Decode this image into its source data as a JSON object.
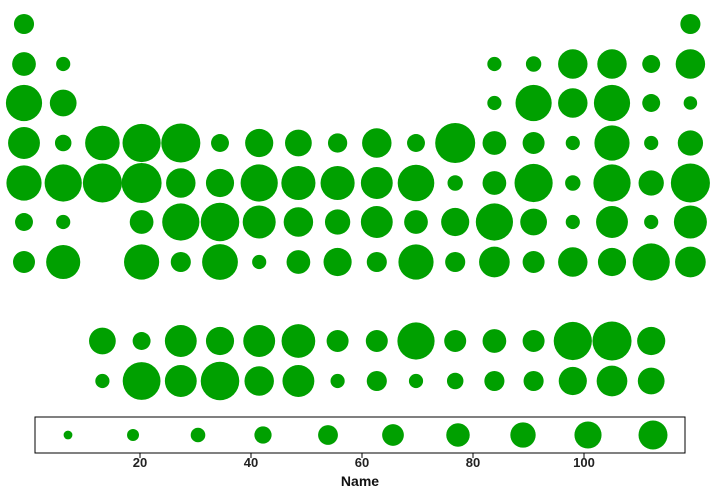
{
  "chart_data": {
    "type": "scatter",
    "subtype": "periodic-table bubble chart",
    "xlabel": "Name",
    "x_ticks": [
      20,
      40,
      60,
      80,
      100
    ],
    "xlim": [
      0,
      118
    ],
    "grid": false,
    "legend": "bottom, boxed size key",
    "colors": {
      "marker": "#00a000",
      "axis": "#000000",
      "text": "#111111"
    },
    "rows": [
      {
        "row": 1,
        "cells": [
          [
            1,
            0.2
          ],
          [
            18,
            0.2
          ]
        ]
      },
      {
        "row": 2,
        "cells": [
          [
            1,
            0.3
          ],
          [
            2,
            0.08
          ],
          [
            13,
            0.08
          ],
          [
            14,
            0.1
          ],
          [
            15,
            0.5
          ],
          [
            16,
            0.5
          ],
          [
            17,
            0.15
          ],
          [
            18,
            0.5
          ]
        ]
      },
      {
        "row": 3,
        "cells": [
          [
            1,
            0.8
          ],
          [
            2,
            0.4
          ],
          [
            13,
            0.08
          ],
          [
            14,
            0.8
          ],
          [
            15,
            0.5
          ],
          [
            16,
            0.8
          ],
          [
            17,
            0.15
          ],
          [
            18,
            0.07
          ]
        ]
      },
      {
        "row": 4,
        "cells": [
          [
            1,
            0.6
          ],
          [
            2,
            0.12
          ],
          [
            3,
            0.72
          ],
          [
            4,
            0.9
          ],
          [
            5,
            0.95
          ],
          [
            6,
            0.15
          ],
          [
            7,
            0.45
          ],
          [
            8,
            0.4
          ],
          [
            9,
            0.18
          ],
          [
            10,
            0.5
          ],
          [
            11,
            0.15
          ],
          [
            12,
            1.0
          ],
          [
            13,
            0.3
          ],
          [
            14,
            0.25
          ],
          [
            15,
            0.08
          ],
          [
            16,
            0.75
          ],
          [
            17,
            0.08
          ],
          [
            18,
            0.35
          ]
        ]
      },
      {
        "row": 5,
        "cells": [
          [
            1,
            0.75
          ],
          [
            2,
            0.85
          ],
          [
            3,
            0.95
          ],
          [
            4,
            1.0
          ],
          [
            5,
            0.5
          ],
          [
            6,
            0.45
          ],
          [
            7,
            0.85
          ],
          [
            8,
            0.7
          ],
          [
            9,
            0.7
          ],
          [
            10,
            0.6
          ],
          [
            11,
            0.82
          ],
          [
            12,
            0.1
          ],
          [
            13,
            0.3
          ],
          [
            14,
            0.9
          ],
          [
            15,
            0.1
          ],
          [
            16,
            0.85
          ],
          [
            17,
            0.35
          ],
          [
            18,
            0.95
          ]
        ]
      },
      {
        "row": 6,
        "cells": [
          [
            1,
            0.15
          ],
          [
            2,
            0.08
          ],
          [
            4,
            0.3
          ],
          [
            5,
            0.85
          ],
          [
            6,
            0.92
          ],
          [
            7,
            0.65
          ],
          [
            8,
            0.5
          ],
          [
            9,
            0.35
          ],
          [
            10,
            0.6
          ],
          [
            11,
            0.3
          ],
          [
            12,
            0.45
          ],
          [
            13,
            0.85
          ],
          [
            14,
            0.4
          ],
          [
            15,
            0.08
          ],
          [
            16,
            0.6
          ],
          [
            17,
            0.08
          ],
          [
            18,
            0.65
          ]
        ]
      },
      {
        "row": 7,
        "cells": [
          [
            1,
            0.25
          ],
          [
            2,
            0.7
          ],
          [
            4,
            0.75
          ],
          [
            5,
            0.2
          ],
          [
            6,
            0.78
          ],
          [
            7,
            0.08
          ],
          [
            8,
            0.3
          ],
          [
            9,
            0.45
          ],
          [
            10,
            0.2
          ],
          [
            11,
            0.75
          ],
          [
            12,
            0.2
          ],
          [
            13,
            0.55
          ],
          [
            14,
            0.25
          ],
          [
            15,
            0.5
          ],
          [
            16,
            0.45
          ],
          [
            17,
            0.85
          ],
          [
            18,
            0.55
          ]
        ]
      },
      {
        "row": 9,
        "cells": [
          [
            3,
            0.4
          ],
          [
            4,
            0.15
          ],
          [
            5,
            0.6
          ],
          [
            6,
            0.45
          ],
          [
            7,
            0.6
          ],
          [
            8,
            0.68
          ],
          [
            9,
            0.25
          ],
          [
            10,
            0.25
          ],
          [
            11,
            0.85
          ],
          [
            12,
            0.25
          ],
          [
            13,
            0.3
          ],
          [
            14,
            0.25
          ],
          [
            15,
            0.9
          ],
          [
            16,
            0.95
          ],
          [
            17,
            0.45
          ]
        ]
      },
      {
        "row": 10,
        "cells": [
          [
            3,
            0.08
          ],
          [
            4,
            0.88
          ],
          [
            5,
            0.6
          ],
          [
            6,
            0.92
          ],
          [
            7,
            0.5
          ],
          [
            8,
            0.6
          ],
          [
            9,
            0.08
          ],
          [
            10,
            0.2
          ],
          [
            11,
            0.08
          ],
          [
            12,
            0.12
          ],
          [
            13,
            0.2
          ],
          [
            14,
            0.2
          ],
          [
            15,
            0.45
          ],
          [
            16,
            0.55
          ],
          [
            17,
            0.4
          ]
        ]
      }
    ],
    "size_key": [
      0.05,
      0.12,
      0.2,
      0.3,
      0.42,
      0.52,
      0.62,
      0.74,
      0.86,
      1.0
    ]
  }
}
